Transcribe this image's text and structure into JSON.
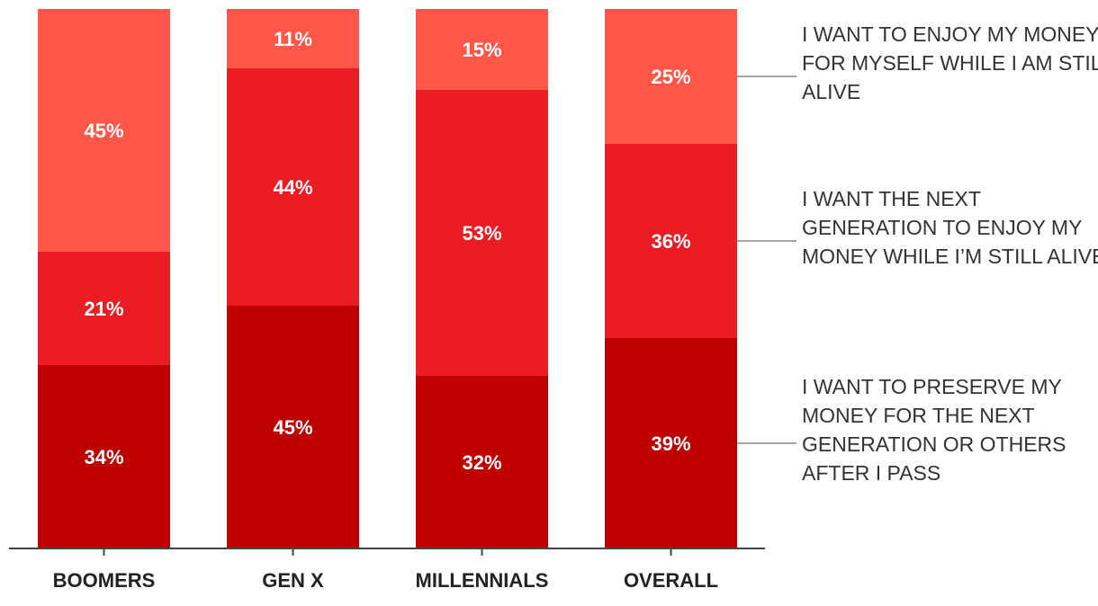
{
  "chart_data": {
    "type": "bar",
    "stacked": true,
    "categories": [
      "BOOMERS",
      "GEN X",
      "MILLENNIALS",
      "OVERALL"
    ],
    "series": [
      {
        "name": "I WANT TO PRESERVE MY MONEY FOR THE NEXT GENERATION OR OTHERS AFTER I PASS",
        "legend_lines": [
          "I WANT TO PRESERVE MY",
          "MONEY FOR THE NEXT",
          "GENERATION OR OTHERS",
          "AFTER I PASS"
        ],
        "color": "#BE0000",
        "values": [
          34,
          45,
          32,
          39
        ]
      },
      {
        "name": "I WANT THE NEXT GENERATION TO ENJOY MY MONEY WHILE I’M STILL ALIVE",
        "legend_lines": [
          "I WANT THE NEXT",
          "GENERATION TO ENJOY MY",
          "MONEY WHILE I’M STILL ALIVE"
        ],
        "color": "#EC1C24",
        "values": [
          21,
          44,
          53,
          36
        ]
      },
      {
        "name": "I WANT TO ENJOY MY MONEY FOR MYSELF WHILE I AM STILL ALIVE",
        "legend_lines": [
          "I WANT TO ENJOY MY MONEY",
          "FOR MYSELF WHILE I AM STILL",
          "ALIVE"
        ],
        "color": "#FF564A",
        "values": [
          45,
          11,
          15,
          25
        ]
      }
    ],
    "value_suffix": "%",
    "ylim": [
      0,
      100
    ],
    "grid": false,
    "legend_position": "right"
  }
}
